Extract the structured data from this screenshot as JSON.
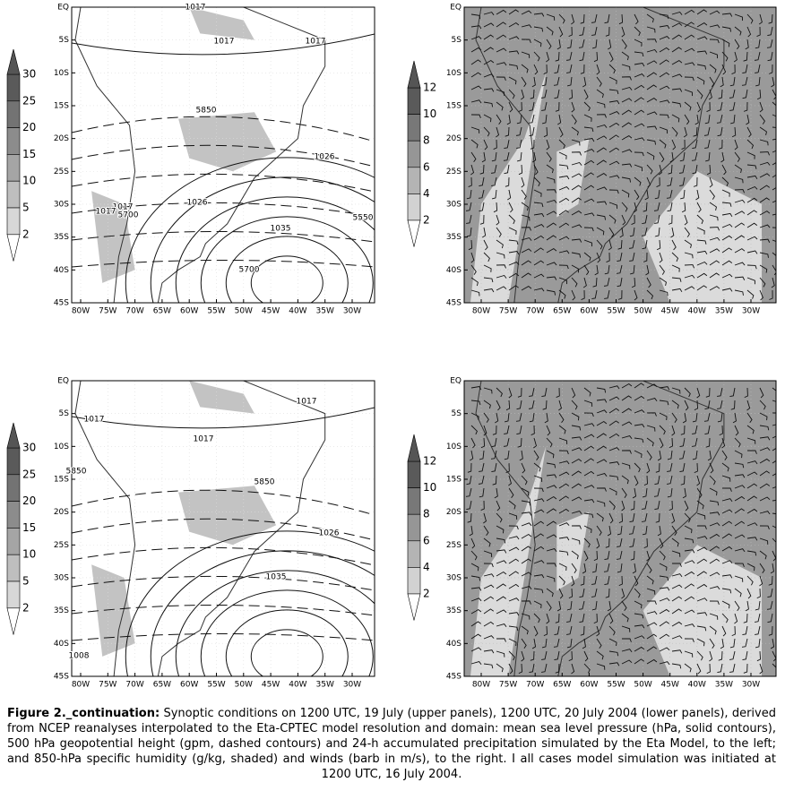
{
  "figure": {
    "lat_labels": [
      "EQ",
      "5S",
      "10S",
      "15S",
      "20S",
      "25S",
      "30S",
      "35S",
      "40S",
      "45S"
    ],
    "lon_labels": [
      "80W",
      "75W",
      "70W",
      "65W",
      "60W",
      "55W",
      "50W",
      "45W",
      "40W",
      "35W",
      "30W"
    ],
    "panels": [
      {
        "kind": "precip",
        "colorbar_labels": [
          "30",
          "25",
          "20",
          "15",
          "10",
          "5",
          "2"
        ],
        "contour_labels": [
          "1017",
          "1017",
          "1017",
          "5850",
          "1026",
          "1017",
          "1017",
          "5700",
          "1026",
          "1035",
          "5550",
          "5700"
        ]
      },
      {
        "kind": "wind",
        "colorbar_labels": [
          "12",
          "10",
          "8",
          "6",
          "4",
          "2"
        ],
        "contour_labels": []
      },
      {
        "kind": "precip",
        "colorbar_labels": [
          "30",
          "25",
          "20",
          "15",
          "10",
          "5",
          "2"
        ],
        "contour_labels": [
          "1017",
          "1017",
          "1017",
          "5850",
          "5850",
          "1026",
          "1035",
          "1008"
        ]
      },
      {
        "kind": "wind",
        "colorbar_labels": [
          "12",
          "10",
          "8",
          "6",
          "4",
          "2"
        ],
        "contour_labels": []
      }
    ],
    "caption": {
      "label": "Figure 2._continuation:",
      "text": "Synoptic conditions on 1200 UTC, 19 July (upper panels), 1200 UTC, 20 July 2004 (lower panels), derived from NCEP reanalyses interpolated to the Eta-CPTEC model resolution and domain: mean sea level pressure (hPa, solid contours), 500 hPa geopotential height (gpm, dashed contours) and 24-h accumulated precipitation simulated by the Eta Model, to the left; and 850-hPa specific humidity (g/kg, shaded) and winds (barb in m/s), to the right. I all cases model simulation was initiated at 1200 UTC, 16 July 2004."
    }
  }
}
